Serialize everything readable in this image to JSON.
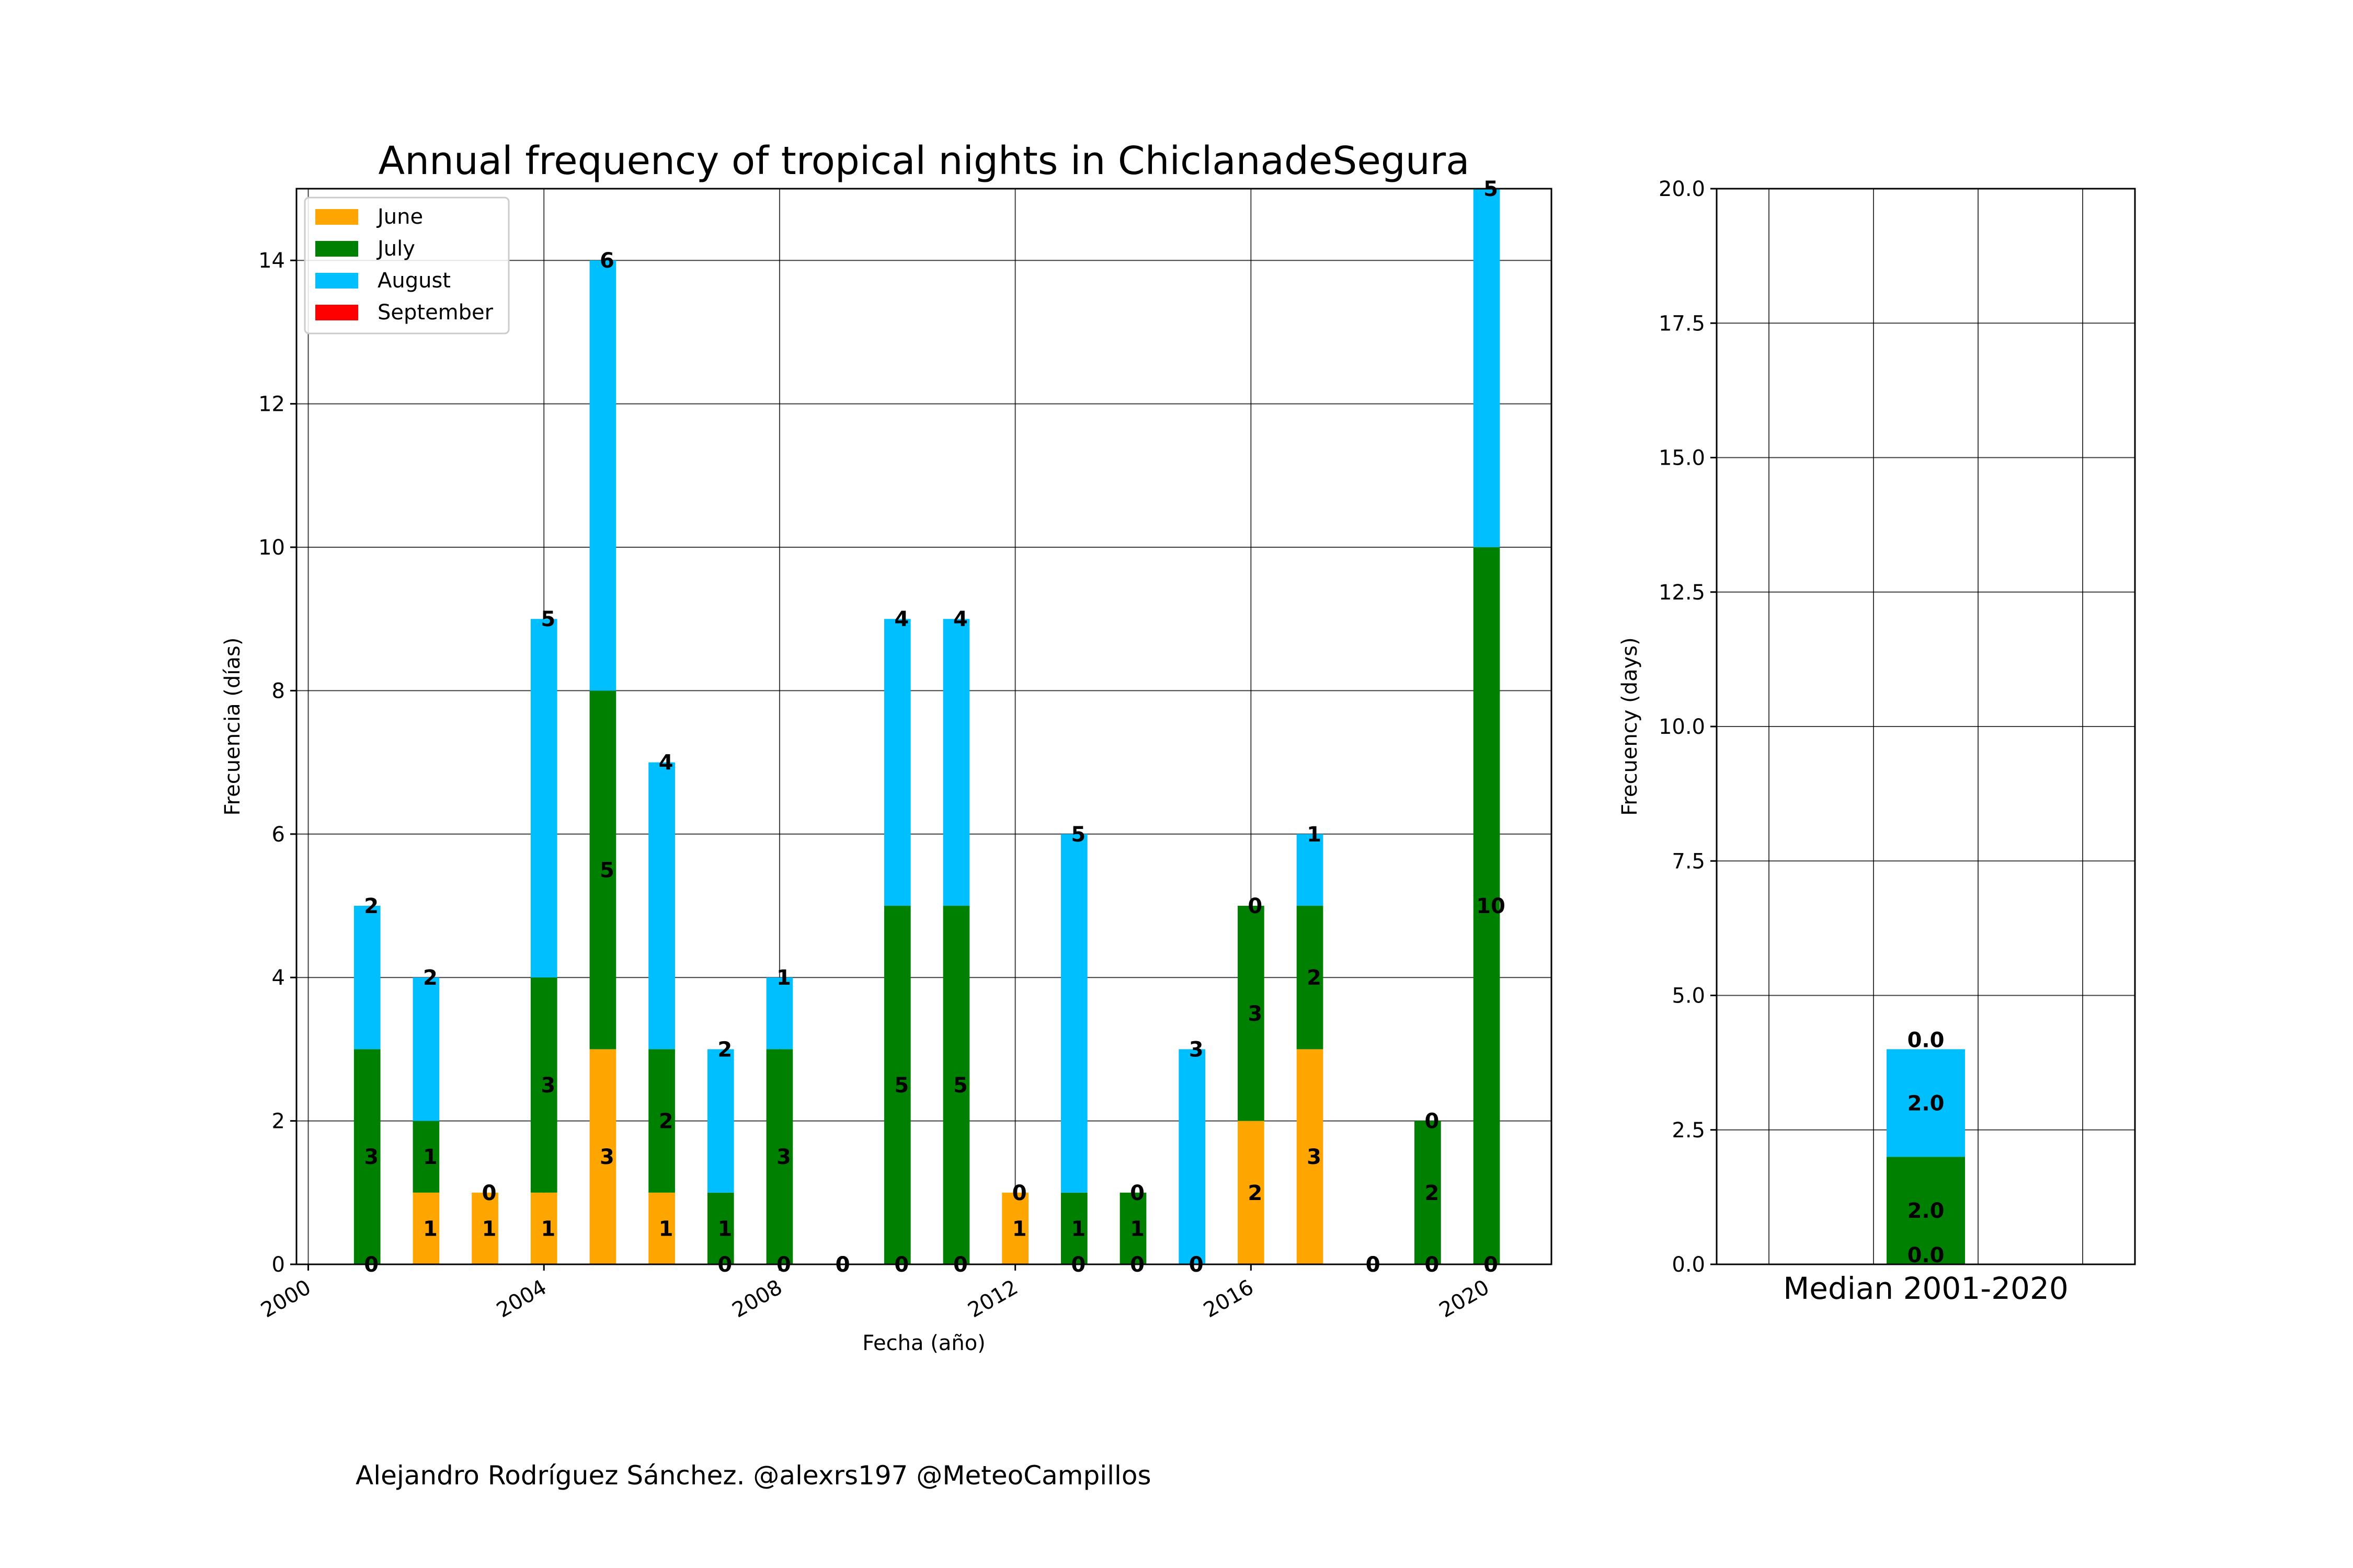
{
  "chart_data": [
    {
      "type": "bar",
      "stacked": true,
      "title": "Annual frequency of tropical nights in ChiclanadeSegura",
      "xlabel": "Fecha (año)",
      "ylabel": "Frecuencia (días)",
      "xlim": [
        1999.8,
        2021.1
      ],
      "ylim": [
        0,
        15
      ],
      "xticks": [
        2000,
        2004,
        2008,
        2012,
        2016,
        2020
      ],
      "yticks": [
        0,
        2,
        4,
        6,
        8,
        10,
        12,
        14
      ],
      "grid": true,
      "legend_position": "top-left",
      "x": [
        2001,
        2002,
        2003,
        2004,
        2005,
        2006,
        2007,
        2008,
        2009,
        2010,
        2011,
        2012,
        2013,
        2014,
        2015,
        2016,
        2017,
        2018,
        2019,
        2020
      ],
      "series": [
        {
          "name": "June",
          "color": "#ffa500",
          "values": [
            0,
            1,
            1,
            1,
            3,
            1,
            0,
            0,
            0,
            0,
            0,
            1,
            0,
            0,
            0,
            2,
            3,
            0,
            0,
            0
          ]
        },
        {
          "name": "July",
          "color": "#008000",
          "values": [
            3,
            1,
            0,
            3,
            5,
            2,
            1,
            3,
            0,
            5,
            5,
            0,
            1,
            1,
            0,
            3,
            2,
            0,
            2,
            10
          ]
        },
        {
          "name": "August",
          "color": "#00bfff",
          "values": [
            2,
            2,
            0,
            5,
            6,
            4,
            2,
            1,
            0,
            4,
            4,
            0,
            5,
            0,
            3,
            0,
            1,
            0,
            0,
            5
          ]
        },
        {
          "name": "September",
          "color": "#ff0000",
          "values": [
            0,
            0,
            0,
            0,
            0,
            0,
            0,
            0,
            0,
            0,
            0,
            0,
            0,
            0,
            0,
            0,
            0,
            0,
            0,
            0
          ]
        }
      ]
    },
    {
      "type": "bar",
      "stacked": true,
      "title": "",
      "xlabel": "Median 2001-2020",
      "ylabel": "Frecuency (days)",
      "ylim": [
        0,
        20
      ],
      "yticks": [
        "0.0",
        "2.5",
        "5.0",
        "7.5",
        "10.0",
        "12.5",
        "15.0",
        "17.5",
        "20.0"
      ],
      "grid": true,
      "series": [
        {
          "name": "June",
          "color": "#ffa500",
          "values": [
            0.0
          ]
        },
        {
          "name": "July",
          "color": "#008000",
          "values": [
            2.0
          ]
        },
        {
          "name": "August",
          "color": "#00bfff",
          "values": [
            2.0
          ]
        },
        {
          "name": "September",
          "color": "#ff0000",
          "values": [
            0.0
          ]
        }
      ]
    }
  ],
  "credit": "Alejandro Rodríguez Sánchez. @alexrs197 @MeteoCampillos"
}
